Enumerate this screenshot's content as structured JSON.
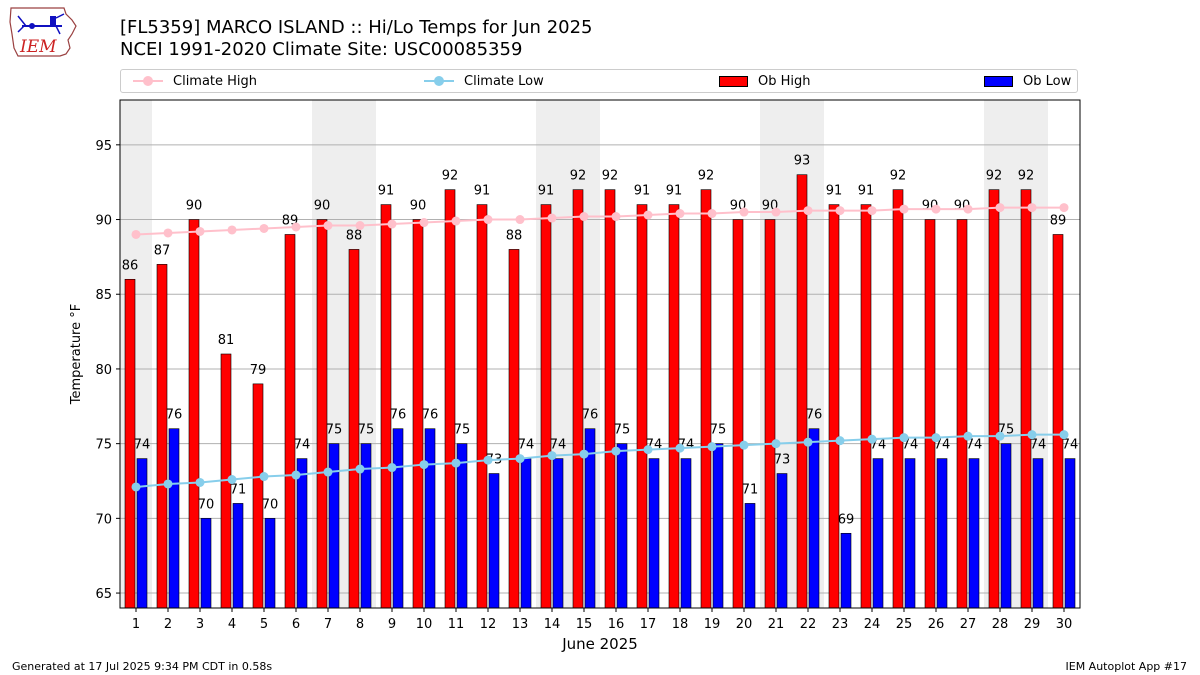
{
  "header": {
    "title_line1": "[FL5359] MARCO ISLAND :: Hi/Lo Temps for Jun 2025",
    "title_line2": "NCEI 1991-2020 Climate Site: USC00085359"
  },
  "logo": {
    "text": "IEM",
    "icon": "iem-iowa-logo-icon"
  },
  "legend": {
    "items": [
      {
        "label": "Climate High",
        "kind": "line",
        "color": "#ffc0cb"
      },
      {
        "label": "Climate Low",
        "kind": "line",
        "color": "#87ceeb"
      },
      {
        "label": "Ob High",
        "kind": "bar",
        "color": "#ff0000"
      },
      {
        "label": "Ob Low",
        "kind": "bar",
        "color": "#0000ff"
      }
    ]
  },
  "footer": {
    "left": "Generated at 17 Jul 2025 9:34 PM CDT in 0.58s",
    "right": "IEM Autoplot App #17"
  },
  "chart_data": {
    "type": "bar",
    "title": "[FL5359] MARCO ISLAND :: Hi/Lo Temps for Jun 2025",
    "subtitle": "NCEI 1991-2020 Climate Site: USC00085359",
    "xlabel": "June 2025",
    "ylabel": "Temperature °F",
    "ylim": [
      64,
      98
    ],
    "yticks": [
      65,
      70,
      75,
      80,
      85,
      90,
      95
    ],
    "grid": true,
    "legend_position": "top",
    "categories": [
      "1",
      "2",
      "3",
      "4",
      "5",
      "6",
      "7",
      "8",
      "9",
      "10",
      "11",
      "12",
      "13",
      "14",
      "15",
      "16",
      "17",
      "18",
      "19",
      "20",
      "21",
      "22",
      "23",
      "24",
      "25",
      "26",
      "27",
      "28",
      "29",
      "30"
    ],
    "weekend_shading_days": [
      [
        1,
        1
      ],
      [
        7,
        8
      ],
      [
        14,
        15
      ],
      [
        21,
        22
      ],
      [
        28,
        29
      ]
    ],
    "series": [
      {
        "name": "Ob High",
        "kind": "bar",
        "color": "#ff0000",
        "values": [
          86,
          87,
          90,
          81,
          79,
          89,
          90,
          88,
          91,
          90,
          92,
          91,
          88,
          91,
          92,
          92,
          91,
          91,
          92,
          90,
          90,
          93,
          91,
          91,
          92,
          90,
          90,
          92,
          92,
          89
        ]
      },
      {
        "name": "Ob Low",
        "kind": "bar",
        "color": "#0000ff",
        "values": [
          74,
          76,
          70,
          71,
          70,
          74,
          75,
          75,
          76,
          76,
          75,
          73,
          74,
          74,
          76,
          75,
          74,
          74,
          75,
          71,
          73,
          76,
          69,
          74,
          74,
          74,
          74,
          75,
          74,
          74
        ]
      },
      {
        "name": "Climate High",
        "kind": "line",
        "color": "#ffc0cb",
        "values": [
          89.0,
          89.1,
          89.2,
          89.3,
          89.4,
          89.5,
          89.6,
          89.6,
          89.7,
          89.8,
          89.9,
          90.0,
          90.0,
          90.1,
          90.2,
          90.2,
          90.3,
          90.4,
          90.4,
          90.5,
          90.5,
          90.6,
          90.6,
          90.6,
          90.7,
          90.7,
          90.7,
          90.8,
          90.8,
          90.8
        ]
      },
      {
        "name": "Climate Low",
        "kind": "line",
        "color": "#87ceeb",
        "values": [
          72.1,
          72.3,
          72.4,
          72.6,
          72.8,
          72.9,
          73.1,
          73.3,
          73.4,
          73.6,
          73.7,
          73.9,
          74.0,
          74.2,
          74.3,
          74.5,
          74.6,
          74.7,
          74.8,
          74.9,
          75.0,
          75.1,
          75.2,
          75.3,
          75.4,
          75.4,
          75.5,
          75.5,
          75.6,
          75.6
        ]
      }
    ]
  }
}
